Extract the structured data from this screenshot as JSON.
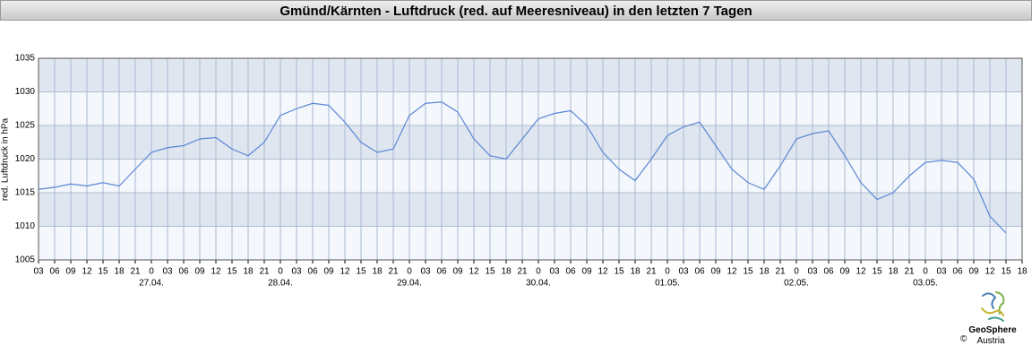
{
  "chart_data": {
    "type": "line",
    "title": "Gmünd/Kärnten - Luftdruck (red. auf Meeresniveau) in den letzten 7 Tagen",
    "y_label": "red. Luftdruck in hPa",
    "x": [
      0,
      3,
      6,
      9,
      12,
      15,
      18,
      21,
      24,
      27,
      30,
      33,
      36,
      39,
      42,
      45,
      48,
      51,
      54,
      57,
      60,
      63,
      66,
      69,
      72,
      75,
      78,
      81,
      84,
      87,
      90,
      93,
      96,
      99,
      102,
      105,
      108,
      111,
      114,
      117,
      120,
      123,
      126,
      129,
      132,
      135,
      138,
      141,
      144,
      147,
      150,
      153,
      156,
      159,
      162,
      165,
      168,
      171,
      174,
      177,
      180
    ],
    "series": [
      {
        "color": "#5b87d6",
        "values": [
          1015.5,
          1015.8,
          1016.3,
          1016.0,
          1016.5,
          1016.0,
          1018.5,
          1021.0,
          1021.7,
          1022.0,
          1023.0,
          1023.2,
          1021.5,
          1020.5,
          1022.5,
          1026.5,
          1027.5,
          1028.3,
          1028.0,
          1025.5,
          1022.5,
          1021.0,
          1021.5,
          1026.5,
          1028.3,
          1028.5,
          1027.0,
          1023.0,
          1020.5,
          1020.0,
          1023.0,
          1026.0,
          1026.8,
          1027.2,
          1025.0,
          1021.0,
          1018.5,
          1016.8,
          1020.0,
          1023.5,
          1024.8,
          1025.5,
          1022.0,
          1018.5,
          1016.5,
          1015.5,
          1019.0,
          1023.0,
          1023.8,
          1024.2,
          1020.5,
          1016.5,
          1014.0,
          1015.0,
          1017.5,
          1019.5,
          1019.8,
          1019.5,
          1017.0,
          1011.5,
          1009.0
        ]
      }
    ],
    "xlim": [
      0,
      183
    ],
    "xticks": [
      {
        "value": 0,
        "label": "03"
      },
      {
        "value": 3,
        "label": "06"
      },
      {
        "value": 6,
        "label": "09"
      },
      {
        "value": 9,
        "label": "12"
      },
      {
        "value": 12,
        "label": "15"
      },
      {
        "value": 15,
        "label": "18"
      },
      {
        "value": 18,
        "label": "21"
      },
      {
        "value": 21,
        "label": "0"
      },
      {
        "value": 24,
        "label": "03"
      },
      {
        "value": 27,
        "label": "06"
      },
      {
        "value": 30,
        "label": "09"
      },
      {
        "value": 33,
        "label": "12"
      },
      {
        "value": 36,
        "label": "15"
      },
      {
        "value": 39,
        "label": "18"
      },
      {
        "value": 42,
        "label": "21"
      },
      {
        "value": 45,
        "label": "0"
      },
      {
        "value": 48,
        "label": "03"
      },
      {
        "value": 51,
        "label": "06"
      },
      {
        "value": 54,
        "label": "09"
      },
      {
        "value": 57,
        "label": "12"
      },
      {
        "value": 60,
        "label": "15"
      },
      {
        "value": 63,
        "label": "18"
      },
      {
        "value": 66,
        "label": "21"
      },
      {
        "value": 69,
        "label": "0"
      },
      {
        "value": 72,
        "label": "03"
      },
      {
        "value": 75,
        "label": "06"
      },
      {
        "value": 78,
        "label": "09"
      },
      {
        "value": 81,
        "label": "12"
      },
      {
        "value": 84,
        "label": "15"
      },
      {
        "value": 87,
        "label": "18"
      },
      {
        "value": 90,
        "label": "21"
      },
      {
        "value": 93,
        "label": "0"
      },
      {
        "value": 96,
        "label": "03"
      },
      {
        "value": 99,
        "label": "06"
      },
      {
        "value": 102,
        "label": "09"
      },
      {
        "value": 105,
        "label": "12"
      },
      {
        "value": 108,
        "label": "15"
      },
      {
        "value": 111,
        "label": "18"
      },
      {
        "value": 114,
        "label": "21"
      },
      {
        "value": 117,
        "label": "0"
      },
      {
        "value": 120,
        "label": "03"
      },
      {
        "value": 123,
        "label": "06"
      },
      {
        "value": 126,
        "label": "09"
      },
      {
        "value": 129,
        "label": "12"
      },
      {
        "value": 132,
        "label": "15"
      },
      {
        "value": 135,
        "label": "18"
      },
      {
        "value": 138,
        "label": "21"
      },
      {
        "value": 141,
        "label": "0"
      },
      {
        "value": 144,
        "label": "03"
      },
      {
        "value": 147,
        "label": "06"
      },
      {
        "value": 150,
        "label": "09"
      },
      {
        "value": 153,
        "label": "12"
      },
      {
        "value": 156,
        "label": "15"
      },
      {
        "value": 159,
        "label": "18"
      },
      {
        "value": 162,
        "label": "21"
      },
      {
        "value": 165,
        "label": "0"
      },
      {
        "value": 168,
        "label": "03"
      },
      {
        "value": 171,
        "label": "06"
      },
      {
        "value": 174,
        "label": "09"
      },
      {
        "value": 177,
        "label": "12"
      },
      {
        "value": 180,
        "label": "15"
      },
      {
        "value": 183,
        "label": "18"
      }
    ],
    "date_labels": [
      {
        "value": 21,
        "label": "27.04."
      },
      {
        "value": 45,
        "label": "28.04."
      },
      {
        "value": 69,
        "label": "29.04."
      },
      {
        "value": 93,
        "label": "30.04."
      },
      {
        "value": 117,
        "label": "01.05."
      },
      {
        "value": 141,
        "label": "02.05."
      },
      {
        "value": 165,
        "label": "03.05."
      }
    ],
    "ylim": [
      1005,
      1035
    ],
    "yticks": [
      1005,
      1010,
      1015,
      1020,
      1025,
      1030,
      1035
    ],
    "grid": true
  },
  "logo": {
    "name": "GeoSphere",
    "sub": "Austria",
    "copyright": "©"
  }
}
